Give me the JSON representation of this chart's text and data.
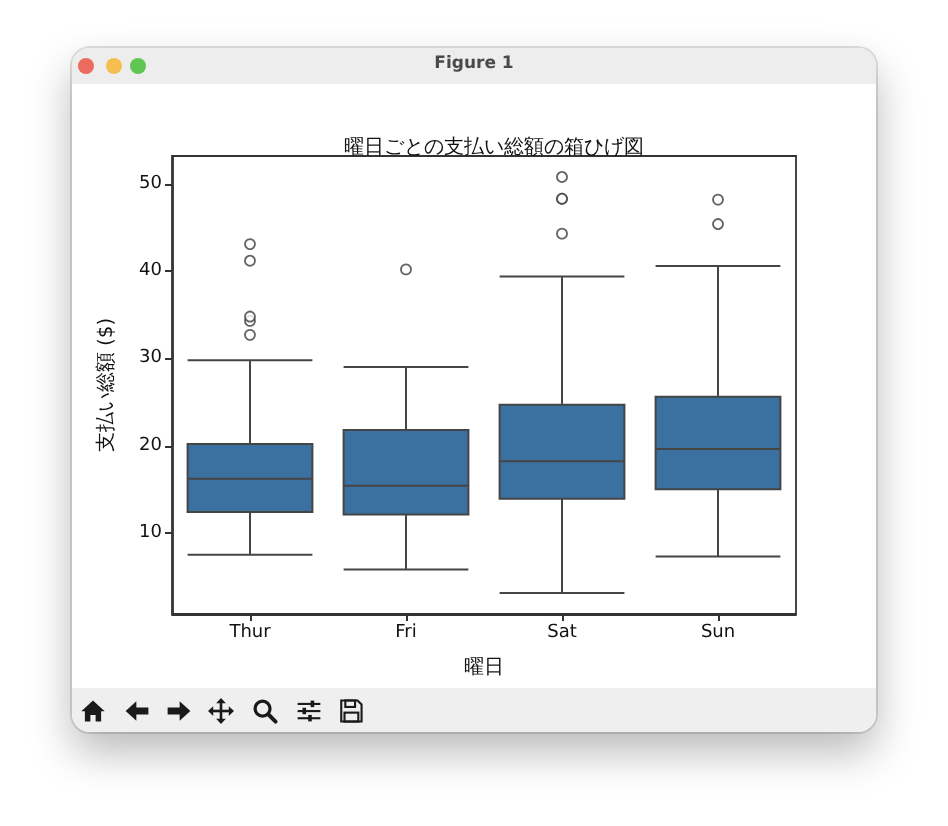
{
  "chart_data": {
    "type": "box",
    "title": "曜日ごとの支払い総額の箱ひげ図",
    "xlabel": "曜日",
    "ylabel": "支払い総額 ($)",
    "categories": [
      "Thur",
      "Fri",
      "Sat",
      "Sun"
    ],
    "color": "#3a71a0",
    "boxes": [
      {
        "low": 7.5,
        "q1": 12.4,
        "median": 16.2,
        "q3": 20.2,
        "high": 29.8,
        "outliers": [
          32.7,
          34.3,
          34.8,
          41.2,
          43.1
        ]
      },
      {
        "low": 5.8,
        "q1": 12.1,
        "median": 15.4,
        "q3": 21.8,
        "high": 29.0,
        "outliers": [
          40.2
        ]
      },
      {
        "low": 3.1,
        "q1": 13.9,
        "median": 18.2,
        "q3": 24.7,
        "high": 39.4,
        "outliers": [
          44.3,
          48.3,
          48.3,
          50.8
        ]
      },
      {
        "low": 7.3,
        "q1": 15.0,
        "median": 19.6,
        "q3": 25.6,
        "high": 40.6,
        "outliers": [
          45.4,
          48.2
        ]
      }
    ],
    "ylim": [
      0.7,
      53.2
    ],
    "yticks": [
      10,
      20,
      30,
      40,
      50
    ],
    "marker": "circle",
    "annotations": [
      "Figure 1"
    ]
  }
}
